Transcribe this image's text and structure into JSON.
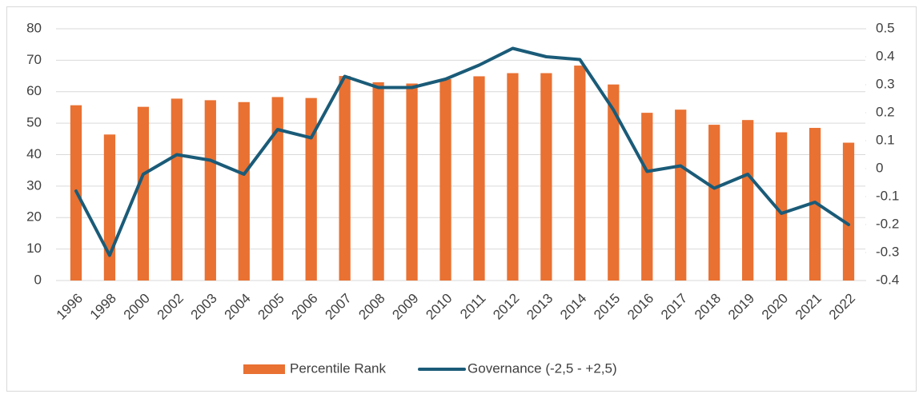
{
  "chart_data": {
    "type": "bar-line",
    "categories": [
      "1996",
      "1998",
      "2000",
      "2002",
      "2003",
      "2004",
      "2005",
      "2006",
      "2007",
      "2008",
      "2009",
      "2010",
      "2011",
      "2012",
      "2013",
      "2014",
      "2015",
      "2016",
      "2017",
      "2018",
      "2019",
      "2020",
      "2021",
      "2022"
    ],
    "series": [
      {
        "name": "Percentile Rank",
        "type": "bar",
        "color": "#e97132",
        "axis": "y",
        "values": [
          55.7,
          46.4,
          55.2,
          57.8,
          57.3,
          56.7,
          58.3,
          58.0,
          65.0,
          63.0,
          62.6,
          64.0,
          64.9,
          65.9,
          65.9,
          68.3,
          62.3,
          53.3,
          54.3,
          49.5,
          51.0,
          47.1,
          48.5,
          43.8
        ]
      },
      {
        "name": "Governance (-2,5 - +2,5)",
        "type": "line",
        "color": "#1a5b78",
        "axis": "y2",
        "values": [
          -0.08,
          -0.31,
          -0.02,
          0.05,
          0.03,
          -0.02,
          0.14,
          0.11,
          0.33,
          0.29,
          0.29,
          0.32,
          0.37,
          0.43,
          0.4,
          0.39,
          0.21,
          -0.01,
          0.01,
          -0.07,
          -0.02,
          -0.16,
          -0.12,
          -0.2
        ]
      }
    ],
    "ylim": [
      0,
      80
    ],
    "yticks": [
      0,
      10,
      20,
      30,
      40,
      50,
      60,
      70,
      80
    ],
    "y2lim": [
      -0.4,
      0.5
    ],
    "y2ticks": [
      -0.4,
      -0.3,
      -0.2,
      -0.1,
      0,
      0.1,
      0.2,
      0.3,
      0.4,
      0.5
    ],
    "grid": true,
    "legend": "bottom"
  }
}
